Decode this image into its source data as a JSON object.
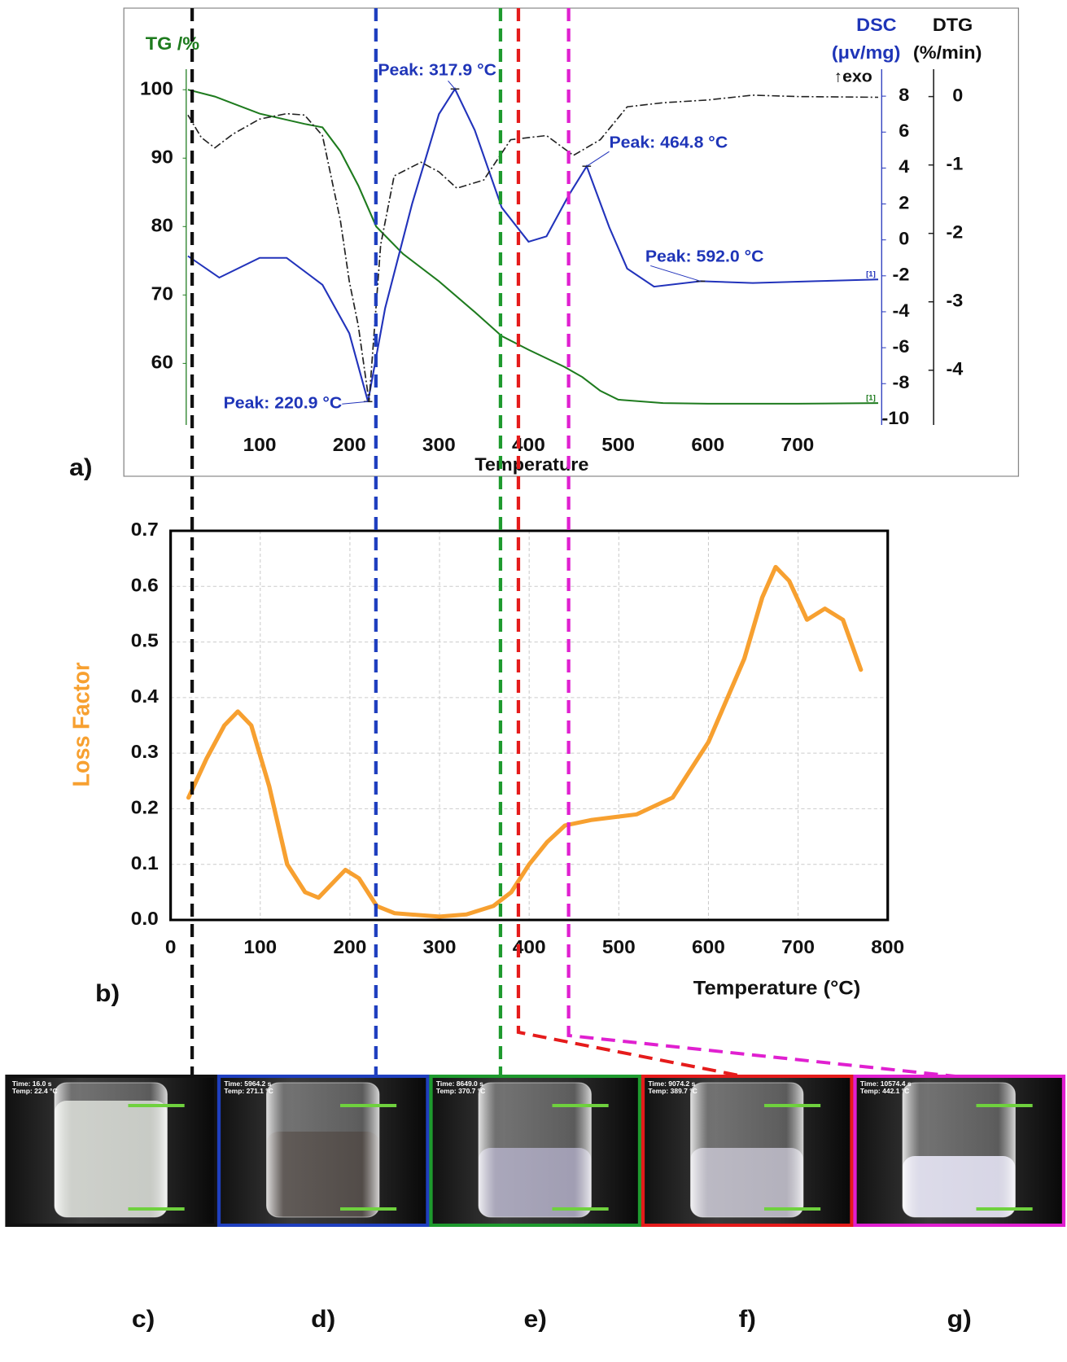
{
  "chart_data": [
    {
      "type": "line",
      "panel_label": "a)",
      "xlabel": "Temperature",
      "xlim": [
        20,
        790
      ],
      "xticks": [
        100,
        200,
        300,
        400,
        500,
        600,
        700
      ],
      "ylabel": "TG /%",
      "ylim": [
        51,
        103
      ],
      "yticks": [
        60,
        70,
        80,
        90,
        100
      ],
      "y2label": [
        "DSC",
        "(μv/mg)"
      ],
      "y2_note": "↑exo",
      "y2lim": [
        -10.3,
        9.5
      ],
      "y2ticks": [
        8,
        6,
        4,
        2,
        0,
        -2,
        -4,
        -6,
        -8,
        -10
      ],
      "y3label": [
        "DTG",
        "(%/min)"
      ],
      "y3lim": [
        -4.8,
        0.4
      ],
      "y3ticks": [
        0,
        -1,
        -2,
        -3,
        -4
      ],
      "series": [
        {
          "color": "#1e7b1e",
          "axis": "y",
          "end_label": "[1]",
          "x": [
            20,
            50,
            100,
            150,
            170,
            190,
            210,
            230,
            260,
            300,
            340,
            370,
            400,
            440,
            460,
            480,
            500,
            550,
            600,
            700,
            790
          ],
          "values": [
            100,
            99,
            96.5,
            95,
            94.5,
            91,
            86,
            80,
            76,
            72,
            67.5,
            64,
            62,
            59.5,
            58,
            56,
            54.7,
            54.2,
            54.1,
            54.1,
            54.2
          ]
        },
        {
          "color": "#2233bb",
          "axis": "y2",
          "end_label": "[1]",
          "x": [
            20,
            55,
            100,
            130,
            170,
            200,
            220.9,
            240,
            270,
            300,
            317.9,
            340,
            370,
            400,
            420,
            445,
            464.8,
            490,
            510,
            540,
            592,
            650,
            720,
            790
          ],
          "values": [
            -0.9,
            -2.1,
            -1.0,
            -1.0,
            -2.5,
            -5.2,
            -9.0,
            -3.8,
            2.0,
            7.0,
            8.4,
            6.1,
            1.8,
            -0.1,
            0.2,
            2.5,
            4.1,
            0.7,
            -1.6,
            -2.6,
            -2.3,
            -2.4,
            -2.3,
            -2.2
          ]
        },
        {
          "color": "#222222",
          "axis": "y3",
          "dash": "dashdot",
          "x": [
            20,
            35,
            50,
            70,
            100,
            130,
            150,
            170,
            190,
            200,
            210,
            222,
            235,
            250,
            280,
            300,
            320,
            350,
            380,
            420,
            450,
            480,
            510,
            550,
            600,
            650,
            700,
            790
          ],
          "values": [
            -0.27,
            -0.6,
            -0.75,
            -0.55,
            -0.33,
            -0.25,
            -0.27,
            -0.57,
            -1.81,
            -2.7,
            -3.35,
            -4.46,
            -2.17,
            -1.16,
            -0.96,
            -1.1,
            -1.34,
            -1.22,
            -0.63,
            -0.57,
            -0.86,
            -0.63,
            -0.15,
            -0.09,
            -0.05,
            0.02,
            0.0,
            -0.01
          ]
        }
      ],
      "annotations": [
        {
          "text": "Peak: 317.9 °C",
          "x": 317.9,
          "y": 8.4,
          "axis": "y2"
        },
        {
          "text": "Peak: 464.8 °C",
          "x": 464.8,
          "y": 4.1,
          "axis": "y2"
        },
        {
          "text": "Peak: 592.0 °C",
          "x": 592.0,
          "y": -2.3,
          "axis": "y2"
        },
        {
          "text": "Peak: 220.9 °C",
          "x": 220.9,
          "y": -9.0,
          "axis": "y2"
        }
      ]
    },
    {
      "type": "line",
      "panel_label": "b)",
      "xlabel": "Temperature (°C)",
      "ylabel": "Loss Factor",
      "color": "#f7a030",
      "grid": true,
      "xlim": [
        0,
        800
      ],
      "xticks": [
        0,
        100,
        200,
        300,
        400,
        500,
        600,
        700,
        800
      ],
      "ylim": [
        0,
        0.7
      ],
      "yticks": [
        {
          "value": 0,
          "label": "0.0"
        },
        0.1,
        0.2,
        0.3,
        0.4,
        0.5,
        0.6,
        0.7
      ],
      "x": [
        20,
        40,
        60,
        75,
        90,
        110,
        130,
        150,
        165,
        180,
        195,
        210,
        230,
        250,
        300,
        330,
        360,
        380,
        400,
        420,
        440,
        470,
        520,
        560,
        600,
        640,
        660,
        675,
        690,
        710,
        730,
        750,
        770
      ],
      "values": [
        0.22,
        0.29,
        0.35,
        0.375,
        0.35,
        0.24,
        0.1,
        0.05,
        0.04,
        0.065,
        0.09,
        0.075,
        0.025,
        0.012,
        0.006,
        0.01,
        0.025,
        0.05,
        0.1,
        0.14,
        0.17,
        0.18,
        0.19,
        0.22,
        0.32,
        0.47,
        0.58,
        0.635,
        0.61,
        0.54,
        0.56,
        0.54,
        0.45
      ]
    }
  ],
  "guides": [
    {
      "x": 24,
      "color": "#111111"
    },
    {
      "x": 229,
      "color": "#1f3fbf"
    },
    {
      "x": 368,
      "color": "#1e9a2e"
    },
    {
      "x": 388,
      "color": "#e51b1b"
    },
    {
      "x": 444,
      "color": "#e020d0"
    }
  ],
  "photos": [
    {
      "label": "c)",
      "time": "Time: 16.0 s",
      "temp": "Temp: 22.4 °C"
    },
    {
      "label": "d)",
      "time": "Time: 5964.2 s",
      "temp": "Temp: 271.1 °C"
    },
    {
      "label": "e)",
      "time": "Time: 8649.0 s",
      "temp": "Temp: 370.7 °C"
    },
    {
      "label": "f)",
      "time": "Time: 9074.2 s",
      "temp": "Temp: 389.7 °C"
    },
    {
      "label": "g)",
      "time": "Time: 10574.4 s",
      "temp": "Temp: 442.1 °C"
    }
  ]
}
